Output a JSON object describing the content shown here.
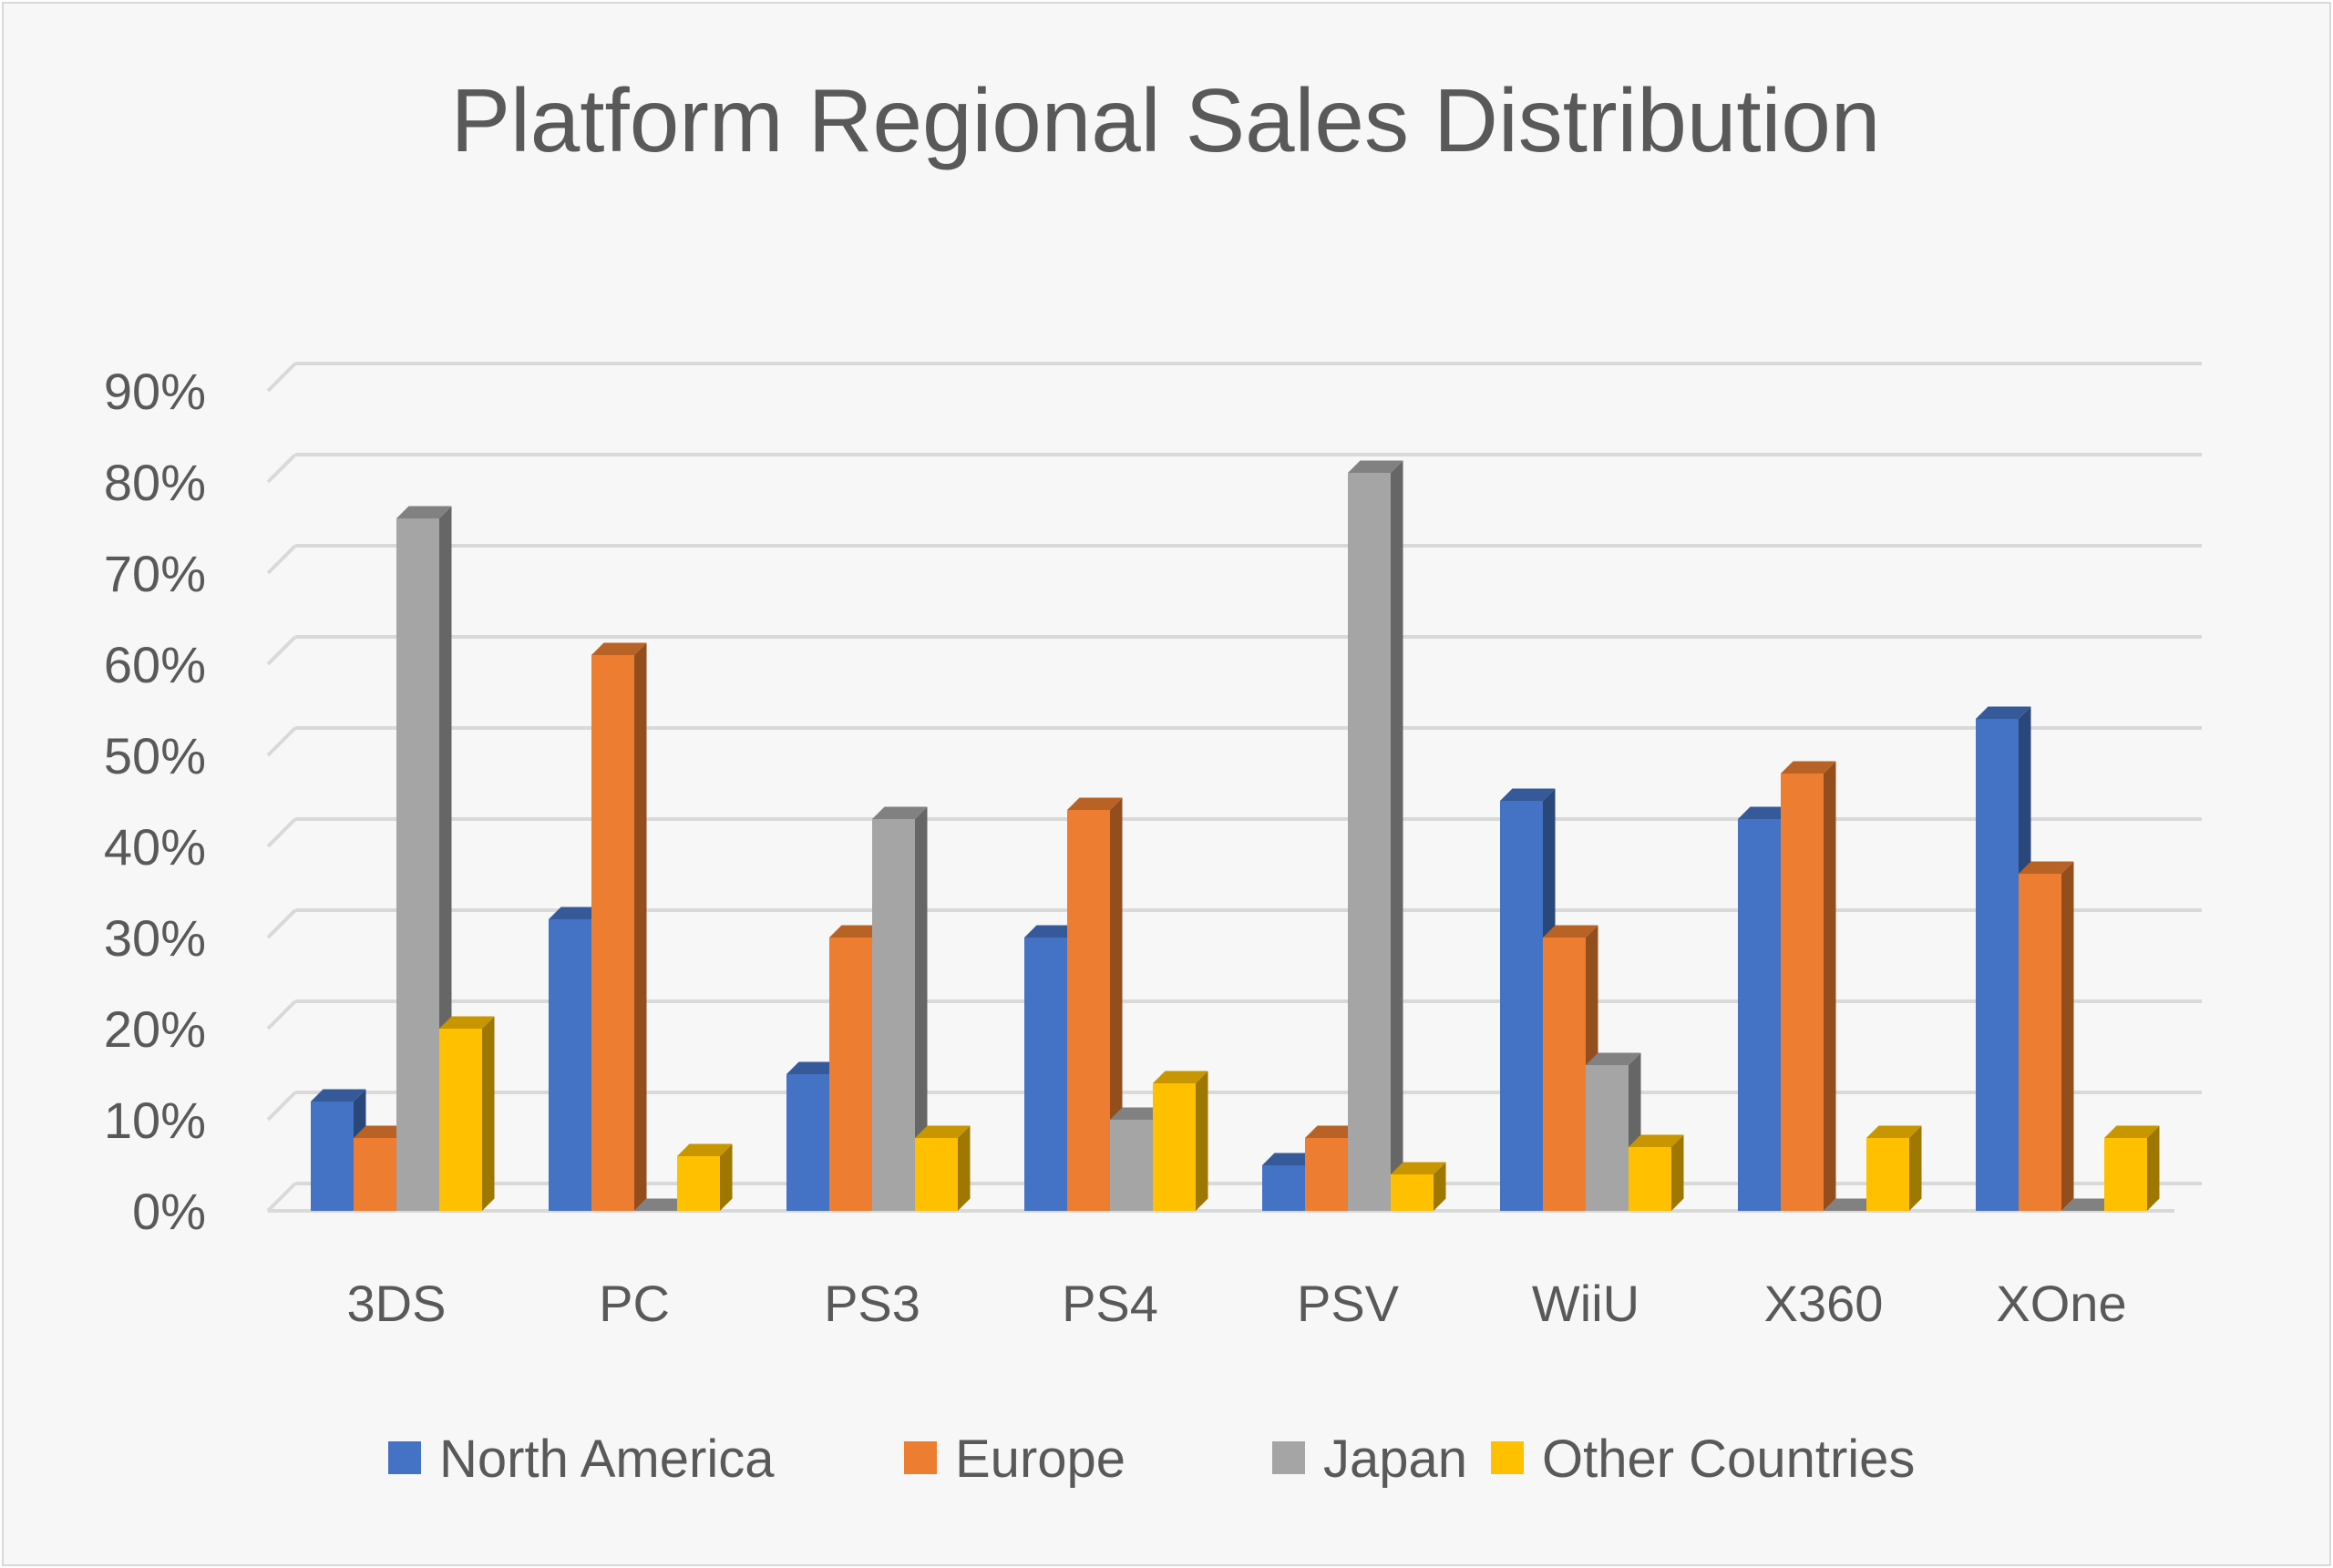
{
  "chart_data": {
    "type": "bar",
    "title": "Platform Regional Sales Distribution",
    "xlabel": "",
    "ylabel": "",
    "ylim": [
      0,
      0.9
    ],
    "y_ticks": [
      "0%",
      "10%",
      "20%",
      "30%",
      "40%",
      "50%",
      "60%",
      "70%",
      "80%",
      "90%"
    ],
    "categories": [
      "3DS",
      "PC",
      "PS3",
      "PS4",
      "PSV",
      "WiiU",
      "X360",
      "XOne"
    ],
    "grid": true,
    "legend_position": "bottom",
    "style": "3d-clustered-column",
    "series": [
      {
        "name": "North America",
        "color": "#4472C4",
        "values": [
          0.12,
          0.32,
          0.15,
          0.3,
          0.05,
          0.45,
          0.43,
          0.54
        ]
      },
      {
        "name": "Europe",
        "color": "#ED7D31",
        "values": [
          0.08,
          0.61,
          0.3,
          0.44,
          0.08,
          0.3,
          0.48,
          0.37
        ]
      },
      {
        "name": "Japan",
        "color": "#A5A5A5",
        "values": [
          0.76,
          0.0,
          0.43,
          0.1,
          0.81,
          0.16,
          0.0,
          0.0
        ]
      },
      {
        "name": "Other Countries",
        "color": "#FFC000",
        "values": [
          0.2,
          0.06,
          0.08,
          0.14,
          0.04,
          0.07,
          0.08,
          0.08
        ]
      }
    ]
  }
}
